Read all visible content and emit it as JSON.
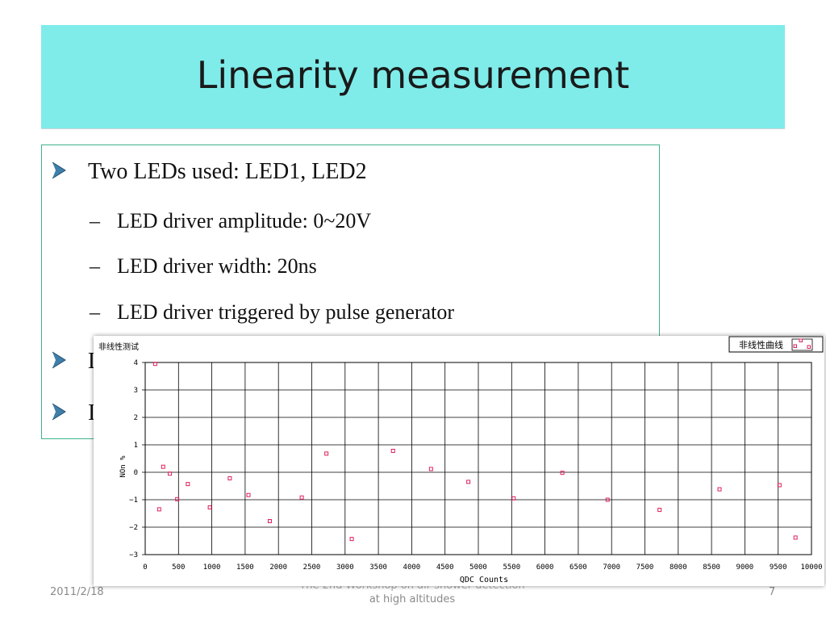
{
  "slide": {
    "title": "Linearity measurement",
    "bullets": [
      {
        "text": "Two LEDs used: LED1, LED2"
      },
      {
        "text": "L"
      },
      {
        "text": "I"
      }
    ],
    "subbullets": [
      "LED driver amplitude: 0~20V",
      "LED driver width: 20ns",
      "LED driver triggered by pulse generator"
    ],
    "footer": {
      "date": "2011/2/18",
      "center_line1": "The 2nd Workshop on air shower detection",
      "center_line2": "at high altitudes",
      "page": "7"
    }
  },
  "chart_data": {
    "type": "scatter",
    "title": "非线性测试",
    "xlabel": "QDC Counts",
    "ylabel": "NOn %",
    "legend": "非线性曲线",
    "legend_position": "top-right",
    "xlim": [
      0,
      10000
    ],
    "ylim": [
      -3,
      4
    ],
    "xticks": [
      0,
      500,
      1000,
      1500,
      2000,
      2500,
      3000,
      3500,
      4000,
      4500,
      5000,
      5500,
      6000,
      6500,
      7000,
      7500,
      8000,
      8500,
      9000,
      9500,
      10000
    ],
    "yticks": [
      -3,
      -2,
      -1,
      0,
      1,
      2,
      3,
      4
    ],
    "grid": true,
    "marker_color": "#e0205a",
    "series": [
      {
        "points": [
          [
            150,
            3.95
          ],
          [
            210,
            -1.35
          ],
          [
            270,
            0.2
          ],
          [
            370,
            -0.05
          ],
          [
            480,
            -0.98
          ],
          [
            640,
            -0.43
          ],
          [
            970,
            -1.28
          ],
          [
            1270,
            -0.22
          ],
          [
            1550,
            -0.83
          ],
          [
            1870,
            -1.78
          ],
          [
            2350,
            -0.92
          ],
          [
            2720,
            0.68
          ],
          [
            3100,
            -2.43
          ],
          [
            3720,
            0.78
          ],
          [
            4290,
            0.12
          ],
          [
            4850,
            -0.35
          ],
          [
            5530,
            -0.95
          ],
          [
            6260,
            -0.02
          ],
          [
            6940,
            -1.0
          ],
          [
            7720,
            -1.37
          ],
          [
            8620,
            -0.62
          ],
          [
            9520,
            -0.47
          ],
          [
            9760,
            -2.38
          ]
        ]
      }
    ]
  }
}
